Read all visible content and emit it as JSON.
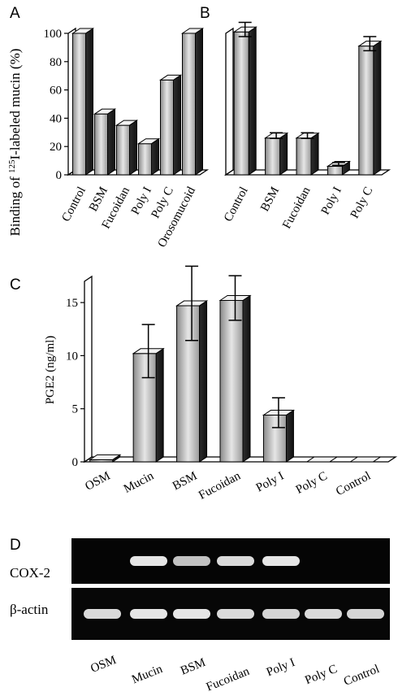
{
  "chart_data": [
    {
      "panel": "A",
      "type": "bar",
      "ylabel_pre": "Binding of ",
      "ylabel_sup": "125",
      "ylabel_post": "I-labeled mucin  (%)",
      "categories": [
        "Control",
        "BSM",
        "Fucoidan",
        "Poly I",
        "Poly C",
        "Orosomucoid"
      ],
      "values": [
        100,
        43,
        35,
        22,
        67,
        100
      ],
      "ylim": [
        0,
        100
      ],
      "yticks": [
        0,
        20,
        40,
        60,
        80,
        100
      ]
    },
    {
      "panel": "B",
      "type": "bar",
      "categories": [
        "Control",
        "BSM",
        "Fucoidan",
        "Poly I",
        "Poly C"
      ],
      "values": [
        101,
        26,
        26,
        6,
        91
      ],
      "errors": [
        5,
        2,
        2,
        1,
        5
      ],
      "ylim": [
        0,
        100
      ]
    },
    {
      "panel": "C",
      "type": "bar",
      "ylabel": "PGE2 (ng/ml)",
      "categories": [
        "OSM",
        "Mucin",
        "BSM",
        "Fucoidan",
        "Poly I",
        "Poly C",
        "Control"
      ],
      "values": [
        0.2,
        10.2,
        14.7,
        15.2,
        4.4,
        0,
        0
      ],
      "errors": [
        0,
        2.5,
        3.5,
        2.1,
        1.4,
        0,
        0
      ],
      "ylim": [
        0,
        17
      ],
      "yticks": [
        0,
        5,
        10,
        15
      ]
    },
    {
      "panel": "D",
      "type": "table",
      "rows": [
        "COX-2",
        "β-actin"
      ],
      "lanes": [
        "OSM",
        "Mucin",
        "BSM",
        "Fucoidan",
        "Poly I",
        "Poly C",
        "Control"
      ],
      "band_intensity": {
        "COX-2": [
          0,
          0.95,
          0.8,
          0.9,
          0.95,
          0,
          0
        ],
        "β-actin": [
          0.9,
          0.95,
          0.95,
          0.9,
          0.88,
          0.9,
          0.88
        ]
      }
    }
  ]
}
